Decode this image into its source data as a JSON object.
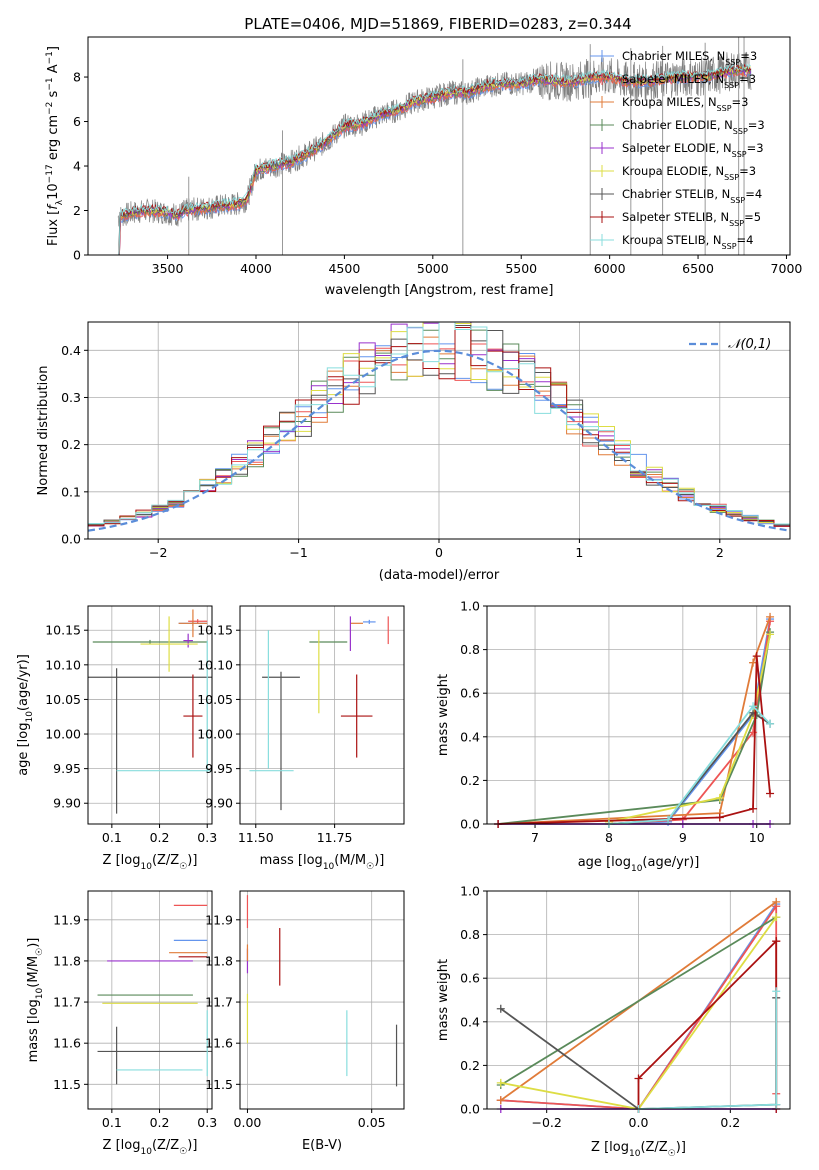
{
  "title": "PLATE=0406, MJD=51869, FIBERID=0283, z=0.344",
  "chart_data": [
    {
      "id": "spectrum",
      "type": "line",
      "xlabel": "wavelength [Angstrom, rest frame]",
      "ylabel": "Flux [f_λ 10^-17 erg cm^-2 s^-1 A^-1]",
      "xlim": [
        3050,
        7020
      ],
      "ylim": [
        0,
        9.8
      ],
      "xticks": [
        3500,
        4000,
        4500,
        5000,
        5500,
        6000,
        6500,
        7000
      ],
      "yticks": [
        0,
        2,
        4,
        6,
        8
      ],
      "legend_position": "top-right",
      "grid": false,
      "data_color": "#808080",
      "data_profile": {
        "x": [
          3220,
          3300,
          3400,
          3500,
          3560,
          3600,
          3700,
          3800,
          3900,
          3950,
          4000,
          4100,
          4200,
          4300,
          4400,
          4500,
          4600,
          4700,
          4800,
          4900,
          5000,
          5100,
          5200,
          5300,
          5400,
          5500,
          5600,
          5700,
          5800,
          5900,
          6000,
          6100,
          6200,
          6300,
          6400,
          6500,
          6600,
          6700,
          6800
        ],
        "y": [
          1.7,
          1.9,
          2.0,
          1.9,
          1.8,
          2.0,
          2.1,
          2.2,
          2.3,
          2.5,
          3.8,
          4.0,
          4.2,
          4.6,
          5.1,
          5.8,
          5.9,
          6.3,
          6.5,
          6.9,
          7.1,
          7.3,
          7.3,
          7.6,
          7.7,
          7.7,
          7.9,
          7.8,
          7.8,
          8.0,
          8.0,
          7.8,
          7.8,
          7.9,
          8.0,
          8.0,
          8.1,
          8.3,
          8.3
        ]
      },
      "series": [
        {
          "name": "Chabrier MILES, N_SSP=3",
          "color": "#6495ed"
        },
        {
          "name": "Salpeter MILES, N_SSP=3",
          "color": "#ee5555"
        },
        {
          "name": "Kroupa MILES, N_SSP=3",
          "color": "#e07b39"
        },
        {
          "name": "Chabrier ELODIE, N_SSP=3",
          "color": "#5a8a5a"
        },
        {
          "name": "Salpeter ELODIE, N_SSP=3",
          "color": "#9932cc"
        },
        {
          "name": "Kroupa ELODIE, N_SSP=3",
          "color": "#dddd44"
        },
        {
          "name": "Chabrier STELIB, N_SSP=4",
          "color": "#555555"
        },
        {
          "name": "Salpeter STELIB, N_SSP=5",
          "color": "#aa1111"
        },
        {
          "name": "Kroupa STELIB, N_SSP=4",
          "color": "#88dddd"
        }
      ]
    },
    {
      "id": "residuals",
      "type": "line",
      "xlabel": "(data-model)/error",
      "ylabel": "Normed distribution",
      "xlim": [
        -2.5,
        2.5
      ],
      "ylim": [
        0,
        0.46
      ],
      "xticks": [
        -2,
        -1,
        0,
        1,
        2
      ],
      "yticks": [
        0.0,
        0.1,
        0.2,
        0.3,
        0.4
      ],
      "grid": true,
      "legend": "𝒩(0,1)",
      "normal_color": "#5b8dd9",
      "bins": 44
    },
    {
      "id": "age-z",
      "type": "scatter",
      "xlabel": "Z [log10(Z/Z☉)]",
      "ylabel": "age  [log10(age/yr)]",
      "xlim": [
        0.05,
        0.31
      ],
      "ylim": [
        9.87,
        10.185
      ],
      "xticks": [
        0.1,
        0.2,
        0.3
      ],
      "yticks": [
        9.9,
        9.95,
        10.0,
        10.05,
        10.1,
        10.15
      ],
      "grid": true,
      "errorbars": [
        {
          "s": 0,
          "x": 0.27,
          "y": 10.16,
          "xe": 0.03,
          "ye": 0.004
        },
        {
          "s": 1,
          "x": 0.28,
          "y": 10.163,
          "xe": 0.02,
          "ye": 0.003
        },
        {
          "s": 2,
          "x": 0.27,
          "y": 10.16,
          "xe": 0.03,
          "ye": 0.02
        },
        {
          "s": 3,
          "x": 0.18,
          "y": 10.133,
          "xe": 0.12,
          "ye": 0.003
        },
        {
          "s": 4,
          "x": 0.26,
          "y": 10.135,
          "xe": 0.01,
          "ye": 0.01
        },
        {
          "s": 5,
          "x": 0.22,
          "y": 10.13,
          "xe": 0.06,
          "ye": 0.04
        },
        {
          "s": 6,
          "x": 0.19,
          "y": 10.082,
          "xe": 0.21,
          "ye": 0.0
        },
        {
          "s": 6,
          "x": 0.11,
          "y": 9.99,
          "xe": 0.0,
          "ye": 0.105
        },
        {
          "s": 7,
          "x": 0.27,
          "y": 10.026,
          "xe": 0.02,
          "ye": 0.06
        },
        {
          "s": 8,
          "x": 0.21,
          "y": 9.947,
          "xe": 0.1,
          "ye": 0.0
        },
        {
          "s": 8,
          "x": 0.3,
          "y": 10.04,
          "xe": 0.0,
          "ye": 0.095
        }
      ]
    },
    {
      "id": "age-mass",
      "type": "scatter",
      "xlabel": "mass [log10(M/M☉)]",
      "ylabel": "",
      "xlim": [
        11.45,
        11.97
      ],
      "ylim": [
        9.87,
        10.185
      ],
      "xticks": [
        11.5,
        11.75
      ],
      "yticks": [
        9.9,
        9.95,
        10.0,
        10.05,
        10.1,
        10.15
      ],
      "grid": true,
      "errorbars": [
        {
          "s": 0,
          "x": 11.86,
          "y": 10.162,
          "xe": 0.02,
          "ye": 0.003
        },
        {
          "s": 1,
          "x": 11.92,
          "y": 10.15,
          "xe": 0.0,
          "ye": 0.02
        },
        {
          "s": 2,
          "x": 11.82,
          "y": 10.16,
          "xe": 0.02,
          "ye": 0.0
        },
        {
          "s": 3,
          "x": 11.73,
          "y": 10.133,
          "xe": 0.06,
          "ye": 0.0
        },
        {
          "s": 4,
          "x": 11.8,
          "y": 10.145,
          "xe": 0.0,
          "ye": 0.025
        },
        {
          "s": 5,
          "x": 11.7,
          "y": 10.09,
          "xe": 0.0,
          "ye": 0.06
        },
        {
          "s": 6,
          "x": 11.58,
          "y": 10.082,
          "xe": 0.06,
          "ye": 0.0
        },
        {
          "s": 6,
          "x": 11.58,
          "y": 9.99,
          "xe": 0.0,
          "ye": 0.1
        },
        {
          "s": 7,
          "x": 11.82,
          "y": 10.026,
          "xe": 0.05,
          "ye": 0.06
        },
        {
          "s": 8,
          "x": 11.55,
          "y": 9.947,
          "xe": 0.07,
          "ye": 0.0
        },
        {
          "s": 8,
          "x": 11.54,
          "y": 10.05,
          "xe": 0.0,
          "ye": 0.1
        }
      ]
    },
    {
      "id": "mw-age",
      "type": "line",
      "xlabel": "age  [log10(age/yr)]",
      "ylabel": "mass weight",
      "xlim": [
        6.35,
        10.45
      ],
      "ylim": [
        0,
        1.0
      ],
      "xticks": [
        7,
        8,
        9,
        10
      ],
      "yticks": [
        0.0,
        0.2,
        0.4,
        0.6,
        0.8,
        1.0
      ],
      "grid": true,
      "series": [
        {
          "s": 0,
          "x": [
            8.0,
            8.8,
            9.95,
            10.18
          ],
          "y": [
            0.0,
            0.01,
            0.5,
            0.94
          ]
        },
        {
          "s": 1,
          "x": [
            8.0,
            9.0,
            9.95,
            10.18
          ],
          "y": [
            0.0,
            0.02,
            0.42,
            0.93
          ]
        },
        {
          "s": 2,
          "x": [
            6.5,
            9.5,
            9.95,
            10.18
          ],
          "y": [
            0.0,
            0.05,
            0.74,
            0.95
          ]
        },
        {
          "s": 3,
          "x": [
            6.5,
            9.5,
            10.0,
            10.18
          ],
          "y": [
            0.0,
            0.11,
            0.5,
            0.88
          ]
        },
        {
          "s": 4,
          "x": [
            6.5,
            9.0,
            9.95,
            10.18
          ],
          "y": [
            0.0,
            0.0,
            0.0,
            0.0
          ]
        },
        {
          "s": 5,
          "x": [
            8.0,
            9.5,
            9.95,
            10.18
          ],
          "y": [
            0.01,
            0.12,
            0.5,
            0.87
          ]
        },
        {
          "s": 6,
          "x": [
            8.0,
            8.8,
            9.95,
            10.18
          ],
          "y": [
            0.0,
            0.02,
            0.51,
            0.46
          ]
        },
        {
          "s": 7,
          "x": [
            6.5,
            9.5,
            9.95,
            10.0,
            10.18
          ],
          "y": [
            0.0,
            0.03,
            0.07,
            0.77,
            0.14
          ]
        },
        {
          "s": 8,
          "x": [
            8.0,
            8.8,
            9.95,
            10.18
          ],
          "y": [
            0.0,
            0.02,
            0.54,
            0.46
          ]
        }
      ]
    },
    {
      "id": "mass-z",
      "type": "scatter",
      "xlabel": "Z [log10(Z/Z☉)]",
      "ylabel": "mass [log10(M/M☉)]",
      "xlim": [
        0.05,
        0.31
      ],
      "ylim": [
        11.44,
        11.97
      ],
      "xticks": [
        0.1,
        0.2,
        0.3
      ],
      "yticks": [
        11.5,
        11.6,
        11.7,
        11.8,
        11.9
      ],
      "grid": true,
      "errorbars": [
        {
          "s": 0,
          "x": 0.265,
          "y": 11.85,
          "xe": 0.035,
          "ye": 0.0
        },
        {
          "s": 1,
          "x": 0.265,
          "y": 11.935,
          "xe": 0.035,
          "ye": 0.0
        },
        {
          "s": 2,
          "x": 0.26,
          "y": 11.82,
          "xe": 0.04,
          "ye": 0.0
        },
        {
          "s": 3,
          "x": 0.17,
          "y": 11.717,
          "xe": 0.1,
          "ye": 0.0
        },
        {
          "s": 4,
          "x": 0.18,
          "y": 11.8,
          "xe": 0.09,
          "ye": 0.0
        },
        {
          "s": 5,
          "x": 0.18,
          "y": 11.697,
          "xe": 0.1,
          "ye": 0.0
        },
        {
          "s": 6,
          "x": 0.19,
          "y": 11.58,
          "xe": 0.12,
          "ye": 0.0
        },
        {
          "s": 6,
          "x": 0.11,
          "y": 11.57,
          "xe": 0.0,
          "ye": 0.07
        },
        {
          "s": 7,
          "x": 0.27,
          "y": 11.81,
          "xe": 0.03,
          "ye": 0.0
        },
        {
          "s": 8,
          "x": 0.2,
          "y": 11.535,
          "xe": 0.09,
          "ye": 0.0
        },
        {
          "s": 8,
          "x": 0.3,
          "y": 11.6,
          "xe": 0.0,
          "ye": 0.08
        }
      ]
    },
    {
      "id": "mass-ebv",
      "type": "scatter",
      "xlabel": "E(B-V)",
      "ylabel": "",
      "xlim": [
        -0.003,
        0.063
      ],
      "ylim": [
        11.44,
        11.97
      ],
      "xticks": [
        0.0,
        0.05
      ],
      "yticks": [
        11.5,
        11.6,
        11.7,
        11.8,
        11.9
      ],
      "grid": true,
      "errorbars": [
        {
          "s": 1,
          "x": 0.0,
          "y": 11.92,
          "xe": 0.0,
          "ye": 0.04
        },
        {
          "s": 4,
          "x": 0.0,
          "y": 11.8,
          "xe": 0.0,
          "ye": 0.03
        },
        {
          "s": 2,
          "x": 0.0,
          "y": 11.82,
          "xe": 0.0,
          "ye": 0.02
        },
        {
          "s": 5,
          "x": 0.0,
          "y": 11.66,
          "xe": 0.0,
          "ye": 0.06
        },
        {
          "s": 7,
          "x": 0.013,
          "y": 11.81,
          "xe": 0.0,
          "ye": 0.07
        },
        {
          "s": 8,
          "x": 0.04,
          "y": 11.6,
          "xe": 0.0,
          "ye": 0.08
        },
        {
          "s": 6,
          "x": 0.06,
          "y": 11.57,
          "xe": 0.0,
          "ye": 0.075
        }
      ]
    },
    {
      "id": "mw-z",
      "type": "line",
      "xlabel": "Z [log10(Z/Z☉)]",
      "ylabel": "mass weight",
      "xlim": [
        -0.33,
        0.33
      ],
      "ylim": [
        0,
        1.0
      ],
      "xticks": [
        -0.2,
        0.0,
        0.2
      ],
      "yticks": [
        0.0,
        0.2,
        0.4,
        0.6,
        0.8,
        1.0
      ],
      "grid": true,
      "series": [
        {
          "s": 0,
          "x": [
            -0.3,
            0.0,
            0.3
          ],
          "y": [
            0.04,
            0.0,
            0.94
          ]
        },
        {
          "s": 1,
          "x": [
            -0.3,
            0.0,
            0.3,
            0.3
          ],
          "y": [
            0.04,
            0.0,
            0.93,
            0.07
          ]
        },
        {
          "s": 2,
          "x": [
            -0.3,
            0.3
          ],
          "y": [
            0.04,
            0.95
          ]
        },
        {
          "s": 3,
          "x": [
            -0.3,
            0.3
          ],
          "y": [
            0.11,
            0.88
          ]
        },
        {
          "s": 4,
          "x": [
            -0.3,
            0.0,
            0.3
          ],
          "y": [
            0.0,
            0.0,
            0.0
          ]
        },
        {
          "s": 5,
          "x": [
            -0.3,
            0.0,
            0.3
          ],
          "y": [
            0.12,
            0.0,
            0.88
          ]
        },
        {
          "s": 6,
          "x": [
            -0.3,
            0.0,
            0.3,
            0.3
          ],
          "y": [
            0.46,
            0.0,
            0.02,
            0.51
          ]
        },
        {
          "s": 7,
          "x": [
            0.0,
            0.0,
            0.3,
            0.3,
            0.3
          ],
          "y": [
            0.0,
            0.14,
            0.77,
            0.77,
            0.0
          ]
        },
        {
          "s": 8,
          "x": [
            0.0,
            0.3,
            0.3
          ],
          "y": [
            0.0,
            0.02,
            0.54
          ]
        }
      ]
    }
  ]
}
